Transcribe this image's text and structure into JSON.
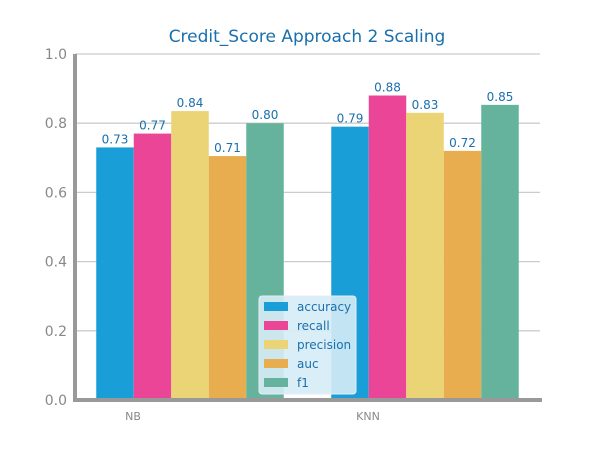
{
  "chart_data": {
    "type": "bar",
    "title": "Credit_Score Approach 2 Scaling",
    "xlabel": "",
    "ylabel": "",
    "categories": [
      "NB",
      "KNN"
    ],
    "ylim": [
      0,
      1.0
    ],
    "yticks": [
      0.0,
      0.2,
      0.4,
      0.6,
      0.8,
      1.0
    ],
    "ytick_labels": [
      "0.0",
      "0.2",
      "0.4",
      "0.6",
      "0.8",
      "1.0"
    ],
    "grid": true,
    "legend_position": "bottom-center",
    "series": [
      {
        "name": "accuracy",
        "color": "#1a9ed8",
        "values": [
          0.73,
          0.79
        ],
        "labels": [
          "0.73",
          "0.79"
        ]
      },
      {
        "name": "recall",
        "color": "#ea4596",
        "values": [
          0.77,
          0.88
        ],
        "labels": [
          "0.77",
          "0.88"
        ]
      },
      {
        "name": "precision",
        "color": "#ebd475",
        "values": [
          0.835,
          0.83
        ],
        "labels": [
          "0.84",
          "0.83"
        ]
      },
      {
        "name": "auc",
        "color": "#e8ad4e",
        "values": [
          0.705,
          0.72
        ],
        "labels": [
          "0.71",
          "0.72"
        ]
      },
      {
        "name": "f1",
        "color": "#65b39c",
        "values": [
          0.8,
          0.853
        ],
        "labels": [
          "0.80",
          "0.85"
        ]
      }
    ]
  },
  "colors": {
    "title": "#1a6fad",
    "value_label": "#1a6fad",
    "tick_label": "#888888",
    "axis": "#999999",
    "grid": "#cccccc",
    "legend_bg": "#d6ecf6",
    "legend_text": "#1a6fad"
  }
}
